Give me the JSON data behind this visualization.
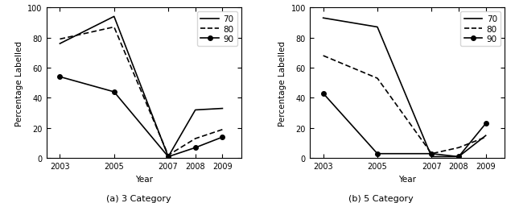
{
  "years": [
    2003,
    2005,
    2007,
    2008,
    2009
  ],
  "left": {
    "s70": [
      76,
      94,
      1,
      32,
      33
    ],
    "s80": [
      79,
      87,
      2,
      13,
      19
    ],
    "s90": [
      54,
      44,
      1,
      7,
      14
    ],
    "title": "(a) 3 Category",
    "ylabel": "Percentage Labelled"
  },
  "right": {
    "s70": [
      93,
      87,
      1,
      1,
      15
    ],
    "s80": [
      68,
      53,
      3,
      7,
      14
    ],
    "s90": [
      43,
      3,
      3,
      1,
      23
    ],
    "title": "(b) 5 Category",
    "ylabel": "Percentage Labelled"
  },
  "xlabel": "Year",
  "ylim": [
    0,
    100
  ],
  "yticks": [
    0,
    20,
    40,
    60,
    80,
    100
  ],
  "xticks": [
    2003,
    2005,
    2007,
    2008,
    2009
  ],
  "legend_labels": [
    "70",
    "80",
    "90"
  ],
  "line_color": "black",
  "bg_color": "white",
  "linewidth": 1.2,
  "markersize": 4,
  "tick_fontsize": 7,
  "label_fontsize": 7.5,
  "legend_fontsize": 7.5,
  "title_fontsize": 8
}
